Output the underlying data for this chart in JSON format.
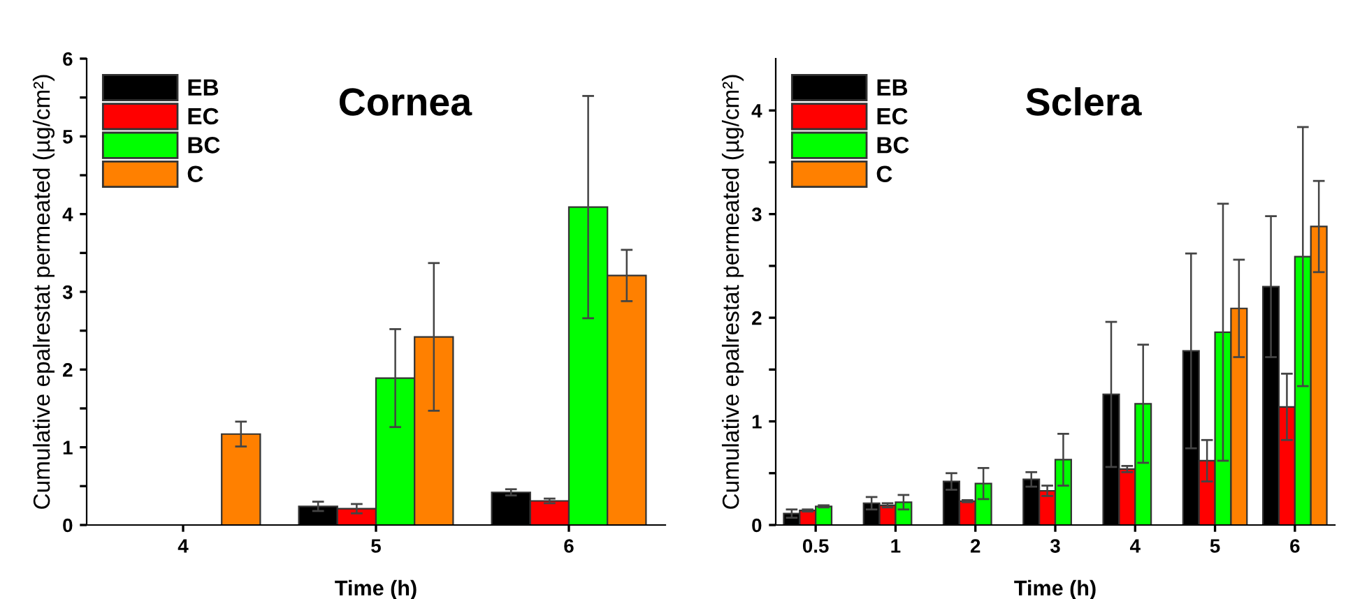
{
  "chart_data": [
    {
      "type": "bar",
      "title": "Cornea",
      "xlabel": "Time (h)",
      "ylabel": "Cumulative epalrestat permeated (µg/cm²)",
      "categories": [
        "4",
        "5",
        "6"
      ],
      "ylim": [
        0,
        6
      ],
      "yticks": [
        0,
        {
          "value": 0.5,
          "label": null
        },
        1,
        {
          "value": 1.5,
          "label": null
        },
        2,
        {
          "value": 2.5,
          "label": null
        },
        3,
        {
          "value": 3.5,
          "label": null
        },
        4,
        {
          "value": 4.5,
          "label": null
        },
        5,
        {
          "value": 5.5,
          "label": null
        },
        6
      ],
      "legend": "top left",
      "grid": false,
      "series": [
        {
          "name": "EB",
          "color": "#000000",
          "values": [
            null,
            0.24,
            0.42
          ],
          "errors": [
            null,
            0.06,
            0.04
          ]
        },
        {
          "name": "EC",
          "color": "#ff0000",
          "values": [
            null,
            0.21,
            0.31
          ],
          "errors": [
            null,
            0.06,
            0.03
          ]
        },
        {
          "name": "BC",
          "color": "#00ff00",
          "values": [
            null,
            1.89,
            4.09
          ],
          "errors": [
            null,
            0.63,
            1.43
          ]
        },
        {
          "name": "C",
          "color": "#ff8000",
          "values": [
            1.17,
            2.42,
            3.21
          ],
          "errors": [
            0.16,
            0.95,
            0.33
          ]
        }
      ]
    },
    {
      "type": "bar",
      "title": "Sclera",
      "xlabel": "Time (h)",
      "ylabel": "Cumulative epalrestat permeated (µg/cm²)",
      "categories": [
        "0.5",
        "1",
        "2",
        "3",
        "4",
        "5",
        "6"
      ],
      "ylim": [
        0,
        4.5
      ],
      "yticks": [
        0,
        {
          "value": 0.5,
          "label": null
        },
        1,
        {
          "value": 1.5,
          "label": null
        },
        2,
        {
          "value": 2.5,
          "label": null
        },
        3,
        {
          "value": 3.5,
          "label": null
        },
        4
      ],
      "legend": "top left",
      "grid": false,
      "series": [
        {
          "name": "EB",
          "color": "#000000",
          "values": [
            0.11,
            0.21,
            0.42,
            0.44,
            1.26,
            1.68,
            2.3
          ],
          "errors": [
            0.04,
            0.06,
            0.08,
            0.07,
            0.7,
            0.94,
            0.68
          ]
        },
        {
          "name": "EC",
          "color": "#ff0000",
          "values": [
            0.14,
            0.19,
            0.23,
            0.33,
            0.54,
            0.62,
            1.14
          ],
          "errors": [
            0.01,
            0.02,
            0.01,
            0.05,
            0.03,
            0.2,
            0.32
          ]
        },
        {
          "name": "BC",
          "color": "#00ff00",
          "values": [
            0.18,
            0.22,
            0.4,
            0.63,
            1.17,
            1.86,
            2.59
          ],
          "errors": [
            0.01,
            0.07,
            0.15,
            0.25,
            0.57,
            1.24,
            1.25
          ]
        },
        {
          "name": "C",
          "color": "#ff8000",
          "values": [
            null,
            null,
            null,
            null,
            null,
            2.09,
            2.88
          ],
          "errors": [
            null,
            null,
            null,
            null,
            null,
            0.47,
            0.44
          ]
        }
      ]
    }
  ]
}
